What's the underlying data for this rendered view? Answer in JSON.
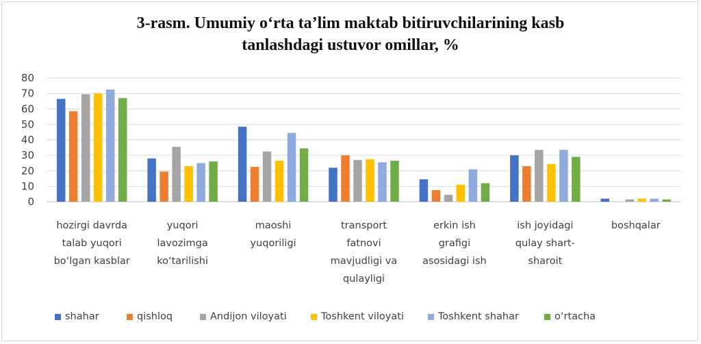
{
  "chart_data": {
    "type": "bar",
    "title": "3-rasm. Umumiy o‘rta ta’lim maktab bitiruvchilarining  kasb tanlashdagi ustuvor omillar, %",
    "title_lines": [
      "3-rasm. Umumiy o‘rta ta’lim maktab bitiruvchilarining  kasb",
      "tanlashdagi ustuvor omillar, %"
    ],
    "xlabel": "",
    "ylabel": "",
    "ylim": [
      0,
      80
    ],
    "yticks": [
      0,
      10,
      20,
      30,
      40,
      50,
      60,
      70,
      80
    ],
    "grid": true,
    "legend_position": "bottom",
    "categories": [
      "hozirgi davrda talab yuqori bo‘lgan kasblar",
      "yuqori lavozimga ko‘tarilishi",
      "maoshi yuqoriligi",
      "transport fatnovi mavjudligi va qulayligi",
      "erkin ish grafigi asosidagi ish",
      "ish joyidagi qulay shart-sharoit",
      "boshqalar"
    ],
    "category_lines": [
      [
        "hozirgi davrda",
        "talab yuqori",
        "bo‘lgan kasblar"
      ],
      [
        "yuqori",
        "lavozimga",
        "ko‘tarilishi"
      ],
      [
        "maoshi",
        "yuqoriligi"
      ],
      [
        "transport",
        "fatnovi",
        "mavjudligi va",
        "qulayligi"
      ],
      [
        "erkin ish",
        "grafigi",
        "asosidagi ish"
      ],
      [
        "ish joyidagi",
        "qulay shart-",
        "sharoit"
      ],
      [
        "boshqalar"
      ]
    ],
    "series": [
      {
        "name": "shahar",
        "color": "#4472C4",
        "values": [
          66.5,
          28,
          48.5,
          22,
          14.5,
          30,
          2
        ]
      },
      {
        "name": "qishloq",
        "color": "#ED7D31",
        "values": [
          58.5,
          19.5,
          22.5,
          30,
          7.5,
          23,
          0
        ]
      },
      {
        "name": "Andijon viloyati",
        "color": "#A5A5A5",
        "values": [
          69.5,
          35.5,
          32.5,
          27,
          4.5,
          33.5,
          1.5
        ]
      },
      {
        "name": "Toshkent viloyati",
        "color": "#FFC000",
        "values": [
          70,
          23,
          26.5,
          27.5,
          11,
          24.5,
          2
        ]
      },
      {
        "name": "Toshkent shahar",
        "color": "#8FAADC",
        "values": [
          72.5,
          25,
          44.5,
          25.5,
          21,
          33.5,
          2
        ]
      },
      {
        "name": "o‘rtacha",
        "color": "#70AD47",
        "values": [
          67,
          26,
          34.5,
          26.5,
          12,
          29,
          1.5
        ]
      }
    ]
  }
}
